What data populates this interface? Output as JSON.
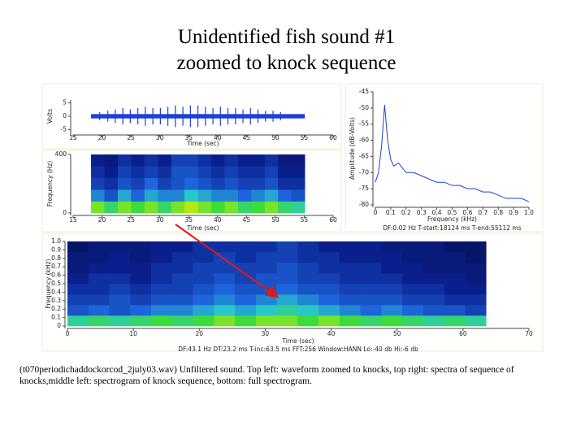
{
  "title": [
    "Unidentified fish sound #1",
    "zoomed to knock sequence"
  ],
  "caption": "(t070periodichaddockorcod_2july03.wav) Unfiltered sound. Top left: waveform zoomed to knocks, top right: spectra of sequence of knocks,middle left: spectrogram of knock sequence, bottom: full spectrogram.",
  "chart_data": [
    {
      "type": "waveform",
      "xlabel": "Time (sec)",
      "ylabel": "Volts",
      "color": "#1f3fd8",
      "xlim": [
        15,
        60
      ],
      "xticks": [
        15,
        20,
        25,
        30,
        35,
        40,
        45,
        50,
        55,
        60
      ],
      "ylim": [
        -6,
        6
      ],
      "yticks": [
        -5,
        0,
        5
      ],
      "time_range": [
        18.1,
        55.1
      ],
      "noise_amplitude": 0.8,
      "x": [
        19.6,
        21,
        22.3,
        23.6,
        24.9,
        26.2,
        27.5,
        28.8,
        30.1,
        31.4,
        32.7,
        34,
        35.3,
        36.6,
        37.9,
        39.2,
        40.5,
        41.8,
        43.1,
        44.4,
        45.7,
        47,
        48.3,
        49.6,
        50.9
      ],
      "values": [
        1.5,
        2,
        2.5,
        3,
        2.5,
        3,
        3.5,
        3,
        3,
        3.5,
        4,
        3.5,
        4,
        4,
        3.5,
        3,
        3.5,
        3,
        3,
        2.5,
        3,
        2.5,
        2,
        2,
        1.5
      ]
    },
    {
      "type": "heatmap",
      "xlabel": "Time (sec)",
      "ylabel": "Frequency (Hz)",
      "xlim": [
        15,
        60
      ],
      "xticks": [
        15,
        20,
        25,
        30,
        35,
        40,
        45,
        50,
        55,
        60
      ],
      "ylim": [
        0,
        400
      ],
      "yticks": [
        0,
        400
      ],
      "time_range": [
        18.1,
        55.1
      ],
      "freq_range": [
        0,
        400
      ],
      "z": [
        [
          0.9,
          0.8,
          0.9,
          0.85,
          0.9,
          0.8,
          0.9,
          0.95,
          0.9,
          0.85,
          0.9,
          0.8,
          0.85,
          0.9,
          0.8,
          0.75
        ],
        [
          0.6,
          0.5,
          0.65,
          0.55,
          0.65,
          0.6,
          0.6,
          0.7,
          0.65,
          0.6,
          0.6,
          0.55,
          0.6,
          0.65,
          0.55,
          0.5
        ],
        [
          0.45,
          0.4,
          0.5,
          0.45,
          0.55,
          0.45,
          0.5,
          0.55,
          0.5,
          0.45,
          0.5,
          0.45,
          0.45,
          0.5,
          0.4,
          0.4
        ],
        [
          0.4,
          0.35,
          0.45,
          0.4,
          0.45,
          0.4,
          0.5,
          0.5,
          0.45,
          0.4,
          0.45,
          0.4,
          0.4,
          0.45,
          0.35,
          0.35
        ],
        [
          0.35,
          0.3,
          0.4,
          0.35,
          0.4,
          0.35,
          0.45,
          0.45,
          0.4,
          0.35,
          0.4,
          0.35,
          0.35,
          0.4,
          0.3,
          0.3
        ]
      ]
    },
    {
      "type": "line",
      "xlabel": "Frequency (kHz)",
      "ylabel": "Amplitude (dB-Volts)",
      "color": "#1f3fd8",
      "annotation": "DF:0.02 Hz     T-start:18124 ms     T-end:55112 ms",
      "xlim": [
        0,
        1
      ],
      "xticks": [
        0,
        0.1,
        0.2,
        0.3,
        0.4,
        0.5,
        0.6,
        0.7,
        0.8,
        0.9,
        {
          "value": 1,
          "label": "1.0"
        }
      ],
      "ylim": [
        -80,
        -45
      ],
      "yticks": [
        -80,
        -75,
        -70,
        -65,
        -60,
        -55,
        -50,
        -45
      ],
      "x": [
        0,
        0.02,
        0.04,
        0.06,
        0.08,
        0.1,
        0.12,
        0.15,
        0.2,
        0.25,
        0.3,
        0.35,
        0.4,
        0.45,
        0.5,
        0.55,
        0.6,
        0.65,
        0.7,
        0.75,
        0.8,
        0.85,
        0.9,
        0.95,
        1
      ],
      "values": [
        -73,
        -70,
        -62,
        -49,
        -60,
        -66,
        -68,
        -67,
        -70,
        -70,
        -71,
        -72,
        -73,
        -73,
        -74,
        -74,
        -75,
        -75,
        -76,
        -76,
        -77,
        -78,
        -78,
        -78,
        -79
      ]
    },
    {
      "type": "heatmap",
      "xlabel": "Time (sec)",
      "ylabel": "Frequency (kHz)",
      "annotation": "DF:43.1 Hz    DT:23.2 ms    T-inc:63.5 ms    FFT:256    Window:HANN    Lo:-40 db    Hi:-6 db",
      "xlim": [
        0,
        70
      ],
      "xticks": [
        0,
        10,
        20,
        30,
        40,
        50,
        60,
        70
      ],
      "ylim": [
        0,
        1
      ],
      "yticks": [
        0,
        0.1,
        0.2,
        0.3,
        0.4,
        0.5,
        0.6,
        0.7,
        0.8,
        0.9,
        {
          "value": 1,
          "label": "1.0"
        }
      ],
      "time_range": [
        0,
        63.5
      ],
      "freq_range": [
        0,
        1
      ],
      "z": [
        [
          0.75,
          0.8,
          0.75,
          0.8,
          0.85,
          0.8,
          0.85,
          0.9,
          0.85,
          0.9,
          0.9,
          0.85,
          0.9,
          0.85,
          0.8,
          0.85,
          0.8,
          0.75,
          0.8,
          0.75
        ],
        [
          0.5,
          0.55,
          0.5,
          0.55,
          0.6,
          0.6,
          0.65,
          0.7,
          0.65,
          0.7,
          0.75,
          0.7,
          0.65,
          0.6,
          0.55,
          0.6,
          0.55,
          0.5,
          0.5,
          0.45
        ],
        [
          0.45,
          0.45,
          0.5,
          0.45,
          0.5,
          0.5,
          0.55,
          0.6,
          0.55,
          0.6,
          0.65,
          0.6,
          0.55,
          0.5,
          0.5,
          0.5,
          0.45,
          0.45,
          0.4,
          0.4
        ],
        [
          0.4,
          0.4,
          0.45,
          0.4,
          0.45,
          0.45,
          0.5,
          0.55,
          0.5,
          0.5,
          0.55,
          0.5,
          0.5,
          0.45,
          0.45,
          0.45,
          0.4,
          0.4,
          0.35,
          0.35
        ],
        [
          0.35,
          0.4,
          0.4,
          0.35,
          0.4,
          0.45,
          0.45,
          0.5,
          0.45,
          0.5,
          0.5,
          0.45,
          0.45,
          0.4,
          0.4,
          0.4,
          0.35,
          0.35,
          0.35,
          0.3
        ],
        [
          0.3,
          0.35,
          0.35,
          0.35,
          0.4,
          0.4,
          0.45,
          0.45,
          0.45,
          0.45,
          0.5,
          0.45,
          0.4,
          0.4,
          0.4,
          0.35,
          0.35,
          0.3,
          0.3,
          0.3
        ],
        [
          0.3,
          0.3,
          0.35,
          0.3,
          0.35,
          0.4,
          0.4,
          0.45,
          0.4,
          0.45,
          0.45,
          0.4,
          0.4,
          0.35,
          0.35,
          0.35,
          0.3,
          0.3,
          0.3,
          0.25
        ],
        [
          0.25,
          0.3,
          0.3,
          0.3,
          0.35,
          0.35,
          0.4,
          0.4,
          0.4,
          0.4,
          0.45,
          0.4,
          0.35,
          0.35,
          0.35,
          0.3,
          0.3,
          0.3,
          0.25,
          0.25
        ]
      ]
    }
  ]
}
